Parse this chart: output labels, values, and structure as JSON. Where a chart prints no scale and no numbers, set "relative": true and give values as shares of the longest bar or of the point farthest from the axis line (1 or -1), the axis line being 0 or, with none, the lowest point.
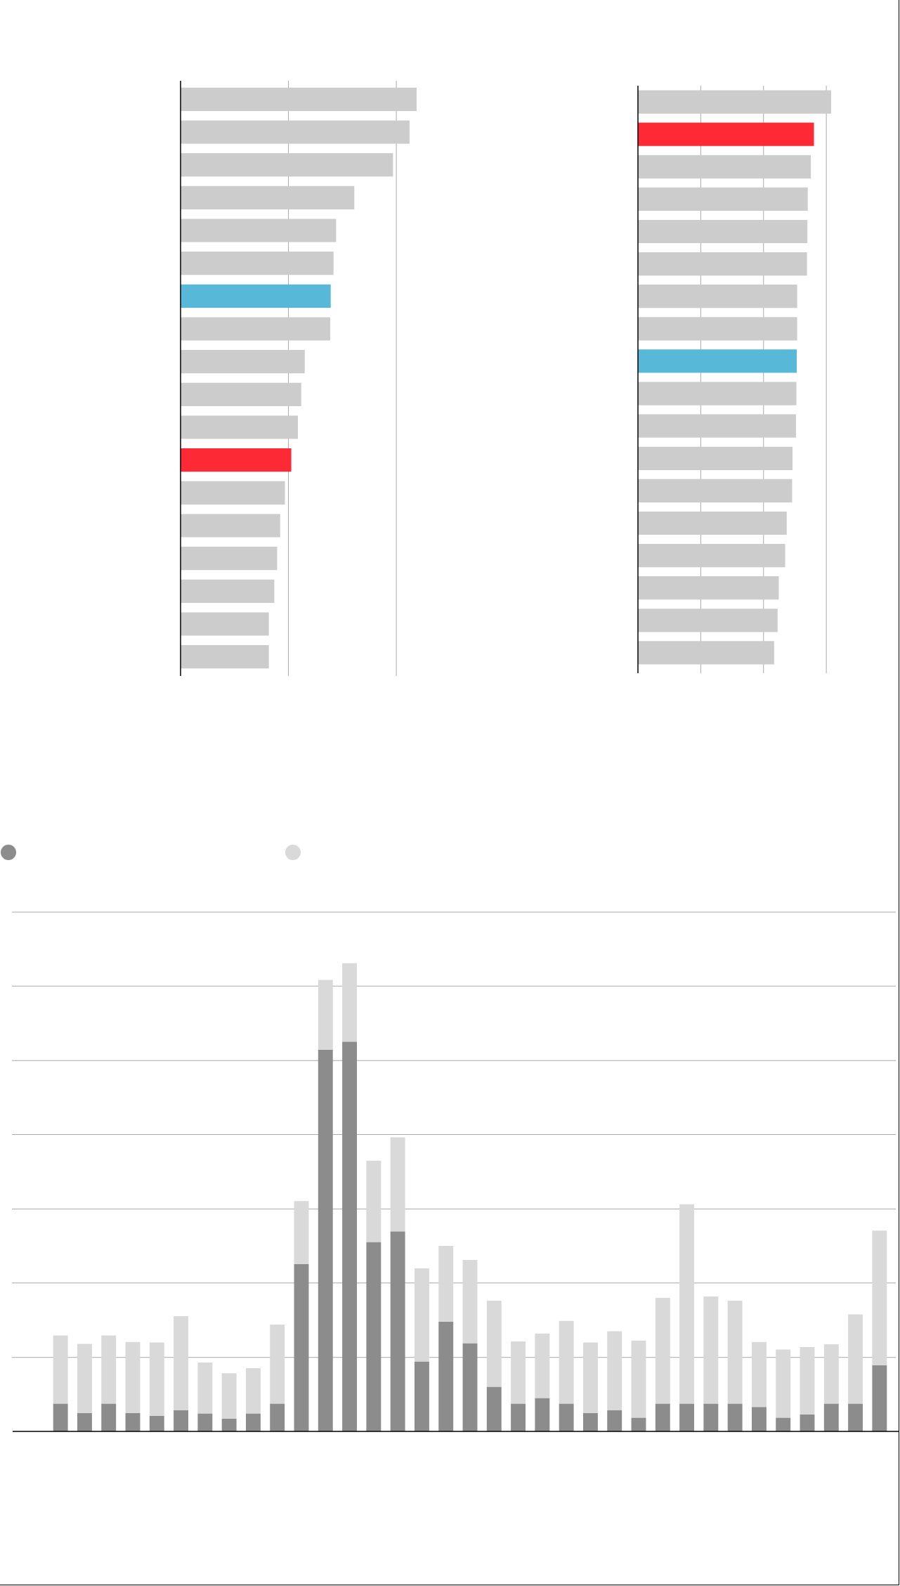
{
  "chart_data": [
    {
      "type": "bar",
      "orientation": "horizontal",
      "relative": true,
      "categories": [
        null,
        null,
        null,
        null,
        null,
        null,
        null,
        null,
        null,
        null,
        null,
        null,
        null,
        null,
        null,
        null,
        null,
        null
      ],
      "values": [
        1,
        0.97,
        0.9,
        0.736,
        0.659,
        0.648,
        0.636,
        0.634,
        0.526,
        0.511,
        0.497,
        0.469,
        0.442,
        0.422,
        0.409,
        0.397,
        0.374,
        0.374
      ],
      "colors": [
        "#cccccc",
        "#cccccc",
        "#cccccc",
        "#cccccc",
        "#cccccc",
        "#cccccc",
        "#57b9d7",
        "#cccccc",
        "#cccccc",
        "#cccccc",
        "#cccccc",
        "#fd2a35",
        "#cccccc",
        "#cccccc",
        "#cccccc",
        "#cccccc",
        "#cccccc",
        "#cccccc"
      ],
      "ref_lines": [
        {
          "axis": "x",
          "value": 0.457
        },
        {
          "axis": "x",
          "value": 0.914
        }
      ]
    },
    {
      "type": "bar",
      "orientation": "horizontal",
      "relative": true,
      "categories": [
        null,
        null,
        null,
        null,
        null,
        null,
        null,
        null,
        null,
        null,
        null,
        null,
        null,
        null,
        null,
        null,
        null,
        null
      ],
      "values": [
        1,
        0.911,
        0.895,
        0.879,
        0.877,
        0.875,
        0.824,
        0.824,
        0.822,
        0.82,
        0.818,
        0.8,
        0.798,
        0.77,
        0.762,
        0.729,
        0.723,
        0.705
      ],
      "colors": [
        "#cccccc",
        "#fd2a35",
        "#cccccc",
        "#cccccc",
        "#cccccc",
        "#cccccc",
        "#cccccc",
        "#cccccc",
        "#57b9d7",
        "#cccccc",
        "#cccccc",
        "#cccccc",
        "#cccccc",
        "#cccccc",
        "#cccccc",
        "#cccccc",
        "#cccccc",
        "#cccccc"
      ],
      "ref_lines": [
        {
          "axis": "x",
          "value": 0.325
        },
        {
          "axis": "x",
          "value": 0.65
        },
        {
          "axis": "x",
          "value": 0.975
        }
      ]
    },
    {
      "type": "bar",
      "stacked": true,
      "relative": true,
      "categories": [
        null,
        null,
        null,
        null,
        null,
        null,
        null,
        null,
        null,
        null,
        null,
        null,
        null,
        null,
        null,
        null,
        null,
        null,
        null,
        null,
        null,
        null,
        null,
        null,
        null,
        null,
        null,
        null,
        null,
        null,
        null,
        null,
        null,
        null,
        null
      ],
      "series": [
        {
          "color": "#8c8c8c",
          "values": [
            0.059,
            0.039,
            0.059,
            0.039,
            0.033,
            0.045,
            0.038,
            0.027,
            0.038,
            0.059,
            0.357,
            0.815,
            0.832,
            0.404,
            0.427,
            0.149,
            0.234,
            0.188,
            0.095,
            0.059,
            0.071,
            0.059,
            0.039,
            0.045,
            0.029,
            0.059,
            0.059,
            0.059,
            0.059,
            0.052,
            0.029,
            0.036,
            0.059,
            0.059,
            0.141
          ]
        },
        {
          "color": "#d9d9d9",
          "values": [
            0.146,
            0.148,
            0.146,
            0.152,
            0.157,
            0.201,
            0.109,
            0.097,
            0.097,
            0.169,
            0.135,
            0.149,
            0.168,
            0.174,
            0.201,
            0.199,
            0.162,
            0.178,
            0.184,
            0.133,
            0.138,
            0.177,
            0.151,
            0.169,
            0.165,
            0.226,
            0.426,
            0.229,
            0.22,
            0.139,
            0.146,
            0.144,
            0.127,
            0.191,
            0.288
          ]
        }
      ],
      "ref_lines": [
        {
          "axis": "y",
          "value": 0.158
        },
        {
          "axis": "y",
          "value": 0.317
        },
        {
          "axis": "y",
          "value": 0.475
        },
        {
          "axis": "y",
          "value": 0.634
        },
        {
          "axis": "y",
          "value": 0.792
        },
        {
          "axis": "y",
          "value": 0.951
        },
        {
          "axis": "y",
          "value": 1.109
        }
      ]
    }
  ]
}
